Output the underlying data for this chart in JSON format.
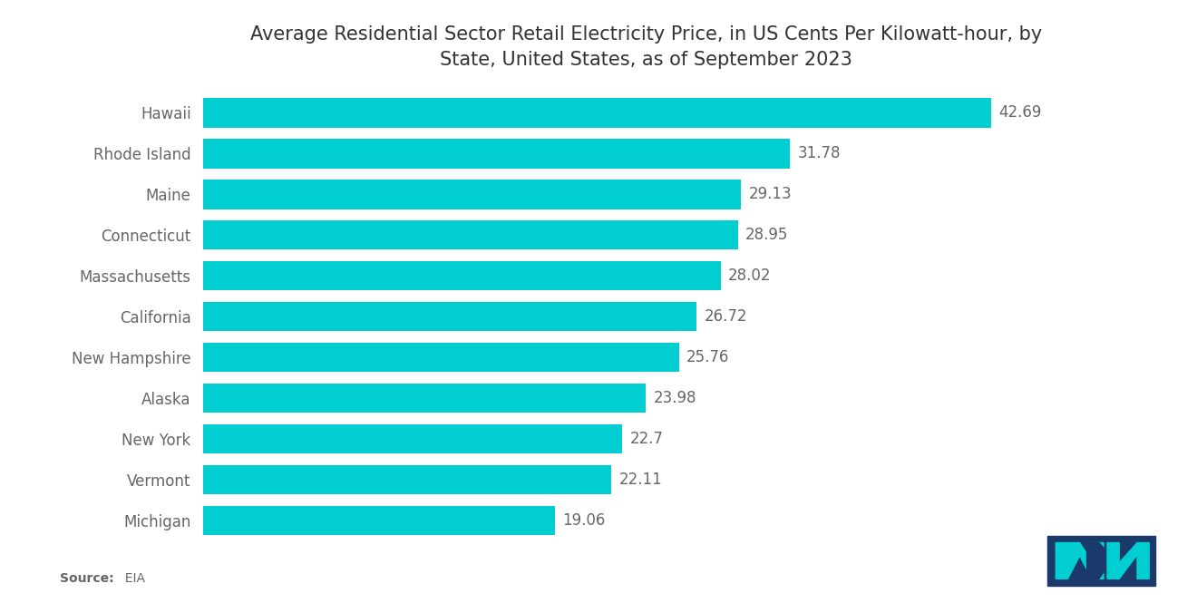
{
  "title": "Average Residential Sector Retail Electricity Price, in US Cents Per Kilowatt-hour, by\nState, United States, as of September 2023",
  "states": [
    "Michigan",
    "Vermont",
    "New York",
    "Alaska",
    "New Hampshire",
    "California",
    "Massachusetts",
    "Connecticut",
    "Maine",
    "Rhode Island",
    "Hawaii"
  ],
  "values": [
    19.06,
    22.11,
    22.7,
    23.98,
    25.76,
    26.72,
    28.02,
    28.95,
    29.13,
    31.78,
    42.69
  ],
  "bar_color": "#00CED1",
  "label_color": "#666666",
  "title_color": "#333333",
  "source_bold": "Source:",
  "source_normal": "  EIA",
  "background_color": "#ffffff",
  "xlim": [
    0,
    48
  ],
  "title_fontsize": 15,
  "label_fontsize": 12,
  "value_fontsize": 12
}
